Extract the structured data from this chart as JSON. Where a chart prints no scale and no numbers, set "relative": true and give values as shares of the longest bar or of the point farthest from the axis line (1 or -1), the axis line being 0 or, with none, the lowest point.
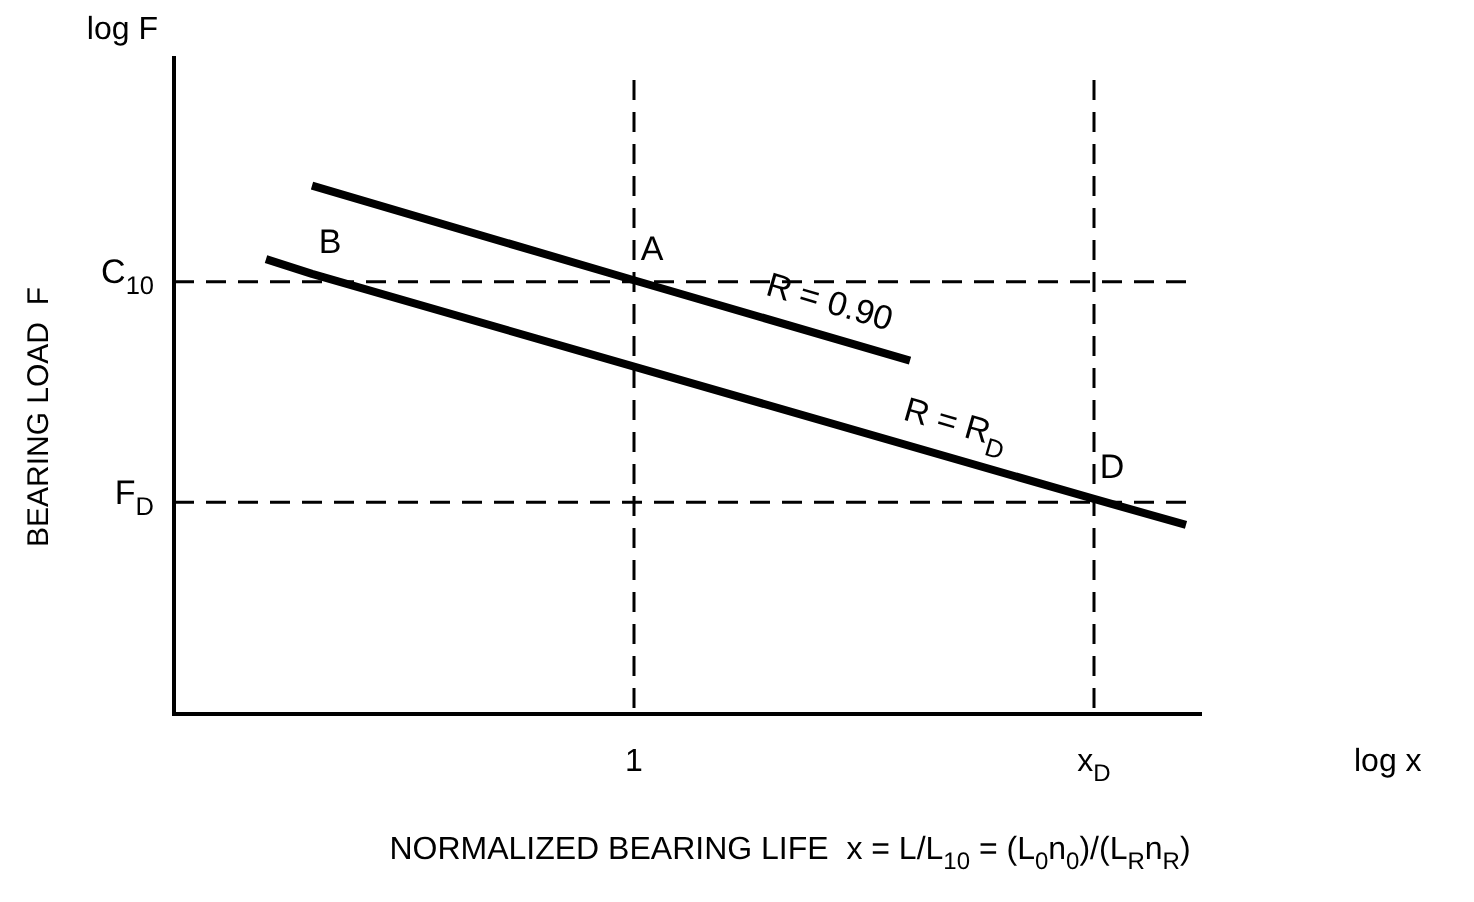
{
  "chart_data": {
    "type": "line",
    "relative": true,
    "marker": "none",
    "line_style": "solid",
    "xlabel": "NORMALIZED BEARING LIFE  x = L/L$_{10}$ = (L$_{0}$n$_{0}$)/(L$_{R}$n$_{R}$)",
    "ylabel": "BEARING LOAD  F",
    "categories": [
      null,
      null,
      null,
      null,
      null,
      null,
      null,
      null,
      null,
      null,
      "1",
      null,
      null,
      null,
      null,
      null,
      null,
      null,
      null,
      null,
      "x$_{D}$",
      null,
      null
    ],
    "series": [
      {
        "name": "R = 0.90",
        "color": "#000000",
        "values": [
          null,
          null,
          null,
          1,
          null,
          null,
          null,
          null,
          null,
          null,
          0.821,
          null,
          null,
          null,
          null,
          null,
          0.669,
          null,
          null,
          null,
          null,
          null,
          null
        ]
      },
      {
        "name": "R = R$_{D}$",
        "color": "#000000",
        "values": [
          null,
          null,
          0.861,
          0.833,
          null,
          null,
          null,
          null,
          null,
          null,
          null,
          null,
          null,
          null,
          null,
          null,
          null,
          null,
          null,
          null,
          0.407,
          null,
          0.358
        ]
      }
    ],
    "ref_lines": [
      {
        "axis": "y",
        "value": 0.818,
        "label": "C$_{10}$",
        "line_style": "dashed"
      },
      {
        "axis": "y",
        "value": 0.401,
        "label": "F$_{D}$",
        "line_style": "dashed"
      },
      {
        "axis": "x",
        "value": "1",
        "line_style": "dashed"
      },
      {
        "axis": "x",
        "value": "x$_{D}$",
        "line_style": "dashed"
      }
    ],
    "annotations": [
      "log F",
      "log x",
      {
        "text": "A",
        "x": "1",
        "y": 0.821
      },
      {
        "text": "B",
        "y": 0.833
      },
      {
        "text": "D",
        "x": "x$_{D}$",
        "y": 0.407
      }
    ]
  }
}
